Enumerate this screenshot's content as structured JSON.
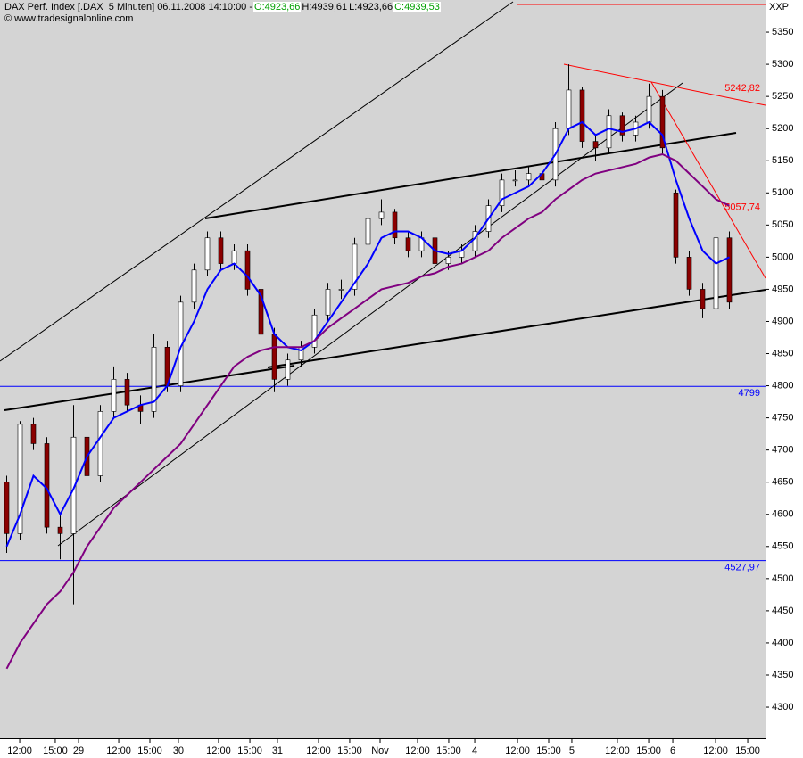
{
  "header": {
    "instrument": "DAX Perf. Index [.DAX  5 Minuten] 06.11.2008 14:10:00 -",
    "open": "O:4923,66",
    "high": "H:4939,61",
    "low": "L:4923,66",
    "close": "C:4939,53",
    "source": "© www.tradesignalonline.com",
    "axis_label": "XXP"
  },
  "chart_data": {
    "type": "candlestick",
    "x": [
      0.5,
      1.5,
      2.5,
      3.5,
      4.5,
      5.5,
      6.5,
      7.5,
      8.5,
      9.5,
      10.5,
      11.5,
      12.5,
      13.5,
      14.5,
      15.5,
      16.5,
      17.5,
      18.5,
      19.5,
      20.5,
      21.5,
      22.5,
      23.5,
      24.5,
      25.5,
      26.5,
      27.5,
      28.5,
      29.5,
      30.5,
      31.5,
      32.5,
      33.5,
      34.5,
      35.5,
      36.5,
      37.5,
      38.5,
      39.5,
      40.5,
      41.5,
      42.5,
      43.5,
      44.5,
      45.5,
      46.5,
      47.5,
      48.5,
      49.5,
      50.5,
      51.5,
      52.5,
      53.5,
      54.5
    ],
    "open": [
      4650,
      4570,
      4740,
      4710,
      4580,
      4570,
      4720,
      4660,
      4760,
      4810,
      4770,
      4760,
      4860,
      4800,
      4930,
      4980,
      5030,
      4990,
      5010,
      4950,
      4880,
      4810,
      4840,
      4860,
      4910,
      4950,
      4950,
      5020,
      5060,
      5070,
      5030,
      5010,
      5030,
      4990,
      5000,
      5010,
      5040,
      5080,
      5120,
      5120,
      5130,
      5120,
      5200,
      5260,
      5180,
      5170,
      5220,
      5190,
      5210,
      5250,
      5100,
      5000,
      4950,
      4920,
      5030
    ],
    "high": [
      4660,
      4745,
      4750,
      4720,
      4600,
      4770,
      4730,
      4770,
      4830,
      4820,
      4785,
      4880,
      4870,
      4940,
      4990,
      5040,
      5040,
      5020,
      5020,
      4960,
      4890,
      4850,
      4870,
      4920,
      4960,
      4965,
      5030,
      5075,
      5090,
      5075,
      5040,
      5040,
      5040,
      5010,
      5020,
      5050,
      5090,
      5130,
      5135,
      5140,
      5140,
      5210,
      5300,
      5265,
      5190,
      5230,
      5225,
      5220,
      5270,
      5260,
      5105,
      5010,
      4960,
      5070,
      5040
    ],
    "low": [
      4540,
      4560,
      4700,
      4570,
      4530,
      4460,
      4640,
      4650,
      4750,
      4760,
      4740,
      4750,
      4790,
      4790,
      4920,
      4970,
      4980,
      4980,
      4940,
      4870,
      4790,
      4800,
      4830,
      4850,
      4900,
      4935,
      4940,
      5010,
      5050,
      5020,
      5000,
      5000,
      4980,
      4980,
      4990,
      5000,
      5030,
      5070,
      5110,
      5110,
      5110,
      5110,
      5190,
      5170,
      5150,
      5160,
      5180,
      5180,
      5200,
      5160,
      4990,
      4940,
      4905,
      4915,
      4920
    ],
    "close": [
      4570,
      4740,
      4710,
      4580,
      4570,
      4720,
      4660,
      4760,
      4810,
      4770,
      4760,
      4860,
      4800,
      4930,
      4980,
      5030,
      4990,
      5010,
      4950,
      4880,
      4810,
      4840,
      4860,
      4910,
      4950,
      4950,
      5020,
      5060,
      5070,
      5030,
      5010,
      5030,
      4990,
      5000,
      5010,
      5040,
      5080,
      5120,
      5120,
      5130,
      5120,
      5200,
      5260,
      5180,
      5170,
      5220,
      5190,
      5210,
      5250,
      5170,
      5000,
      4950,
      4920,
      5030,
      4930
    ],
    "up_color": "#ffffff",
    "down_color": "#8b0000",
    "lines": [
      {
        "color": "#0000ff",
        "values": [
          4550,
          4600,
          4660,
          4640,
          4600,
          4640,
          4690,
          4720,
          4750,
          4760,
          4770,
          4775,
          4800,
          4860,
          4900,
          4950,
          4980,
          4990,
          4970,
          4940,
          4880,
          4860,
          4855,
          4870,
          4900,
          4930,
          4960,
          4990,
          5030,
          5040,
          5040,
          5030,
          5010,
          5005,
          5010,
          5030,
          5060,
          5090,
          5100,
          5110,
          5130,
          5160,
          5200,
          5210,
          5190,
          5200,
          5195,
          5200,
          5210,
          5190,
          5120,
          5060,
          5010,
          4990,
          5000
        ]
      },
      {
        "color": "#800080",
        "values": [
          4360,
          4400,
          4430,
          4460,
          4480,
          4510,
          4550,
          4580,
          4610,
          4630,
          4650,
          4670,
          4690,
          4710,
          4740,
          4770,
          4800,
          4830,
          4845,
          4855,
          4860,
          4860,
          4860,
          4870,
          4890,
          4905,
          4920,
          4935,
          4950,
          4955,
          4960,
          4970,
          4975,
          4985,
          4990,
          5000,
          5010,
          5030,
          5045,
          5060,
          5070,
          5090,
          5105,
          5120,
          5130,
          5135,
          5140,
          5145,
          5155,
          5160,
          5150,
          5130,
          5110,
          5090,
          5080
        ]
      }
    ],
    "hlines": [
      {
        "value": 4799,
        "label": "4799",
        "color": "#0000ff"
      },
      {
        "value": 4527.97,
        "label": "4527,97",
        "color": "#0000ff"
      }
    ],
    "line_labels": [
      {
        "value": 5242.82,
        "label": "5242,82",
        "color": "#ff0000"
      },
      {
        "value": 5057.74,
        "label": "5057,74",
        "color": "#ff0000"
      }
    ],
    "xlim": [
      0,
      57.2
    ],
    "ylim": [
      4251.5,
      5400
    ],
    "yticks": [
      4300,
      4350,
      4400,
      4450,
      4500,
      4550,
      4600,
      4650,
      4700,
      4750,
      4800,
      4850,
      4900,
      4950,
      5000,
      5050,
      5100,
      5150,
      5200,
      5250,
      5300,
      5350
    ],
    "xticks": [
      {
        "value": 1.47,
        "label": "12:00"
      },
      {
        "value": 4.13,
        "label": "15:00"
      },
      {
        "value": 5.87,
        "label": "29"
      },
      {
        "value": 8.87,
        "label": "12:00"
      },
      {
        "value": 11.2,
        "label": "15:00"
      },
      {
        "value": 13.33,
        "label": "30"
      },
      {
        "value": 16.33,
        "label": "12:00"
      },
      {
        "value": 18.67,
        "label": "15:00"
      },
      {
        "value": 20.73,
        "label": "31"
      },
      {
        "value": 23.8,
        "label": "12:00"
      },
      {
        "value": 26.13,
        "label": "15:00"
      },
      {
        "value": 28.4,
        "label": "Nov"
      },
      {
        "value": 31.2,
        "label": "12:00"
      },
      {
        "value": 33.53,
        "label": "15:00"
      },
      {
        "value": 35.47,
        "label": "4"
      },
      {
        "value": 38.67,
        "label": "12:00"
      },
      {
        "value": 41,
        "label": "15:00"
      },
      {
        "value": 42.73,
        "label": "5"
      },
      {
        "value": 46.13,
        "label": "12:00"
      },
      {
        "value": 48.47,
        "label": "15:00"
      },
      {
        "value": 50.27,
        "label": "6"
      },
      {
        "value": 53.47,
        "label": "12:00"
      },
      {
        "value": 55.87,
        "label": "15:00"
      }
    ]
  }
}
